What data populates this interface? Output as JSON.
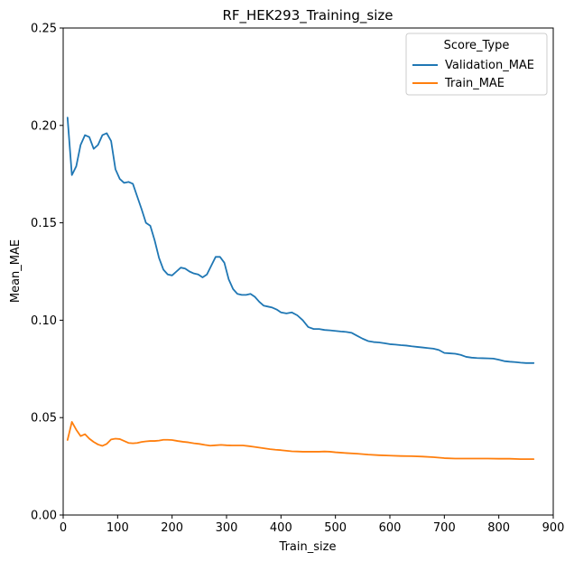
{
  "chart_data": {
    "type": "line",
    "title": "RF_HEK293_Training_size",
    "xlabel": "Train_size",
    "ylabel": "Mean_MAE",
    "xlim": [
      0,
      900
    ],
    "ylim": [
      0,
      0.25
    ],
    "xticks": [
      0,
      100,
      200,
      300,
      400,
      500,
      600,
      700,
      800,
      900
    ],
    "xtick_labels": [
      "0",
      "100",
      "200",
      "300",
      "400",
      "500",
      "600",
      "700",
      "800",
      "900"
    ],
    "yticks": [
      0,
      0.05,
      0.1,
      0.15,
      0.2,
      0.25
    ],
    "ytick_labels": [
      "0.00",
      "0.05",
      "0.10",
      "0.15",
      "0.20",
      "0.25"
    ],
    "grid": false,
    "legend": {
      "title": "Score_Type",
      "position": "top-right"
    },
    "series": [
      {
        "name": "Validation_MAE",
        "color": "#1f77b4",
        "x": [
          8,
          16,
          24,
          32,
          40,
          48,
          56,
          64,
          72,
          80,
          88,
          96,
          104,
          112,
          120,
          128,
          136,
          144,
          152,
          160,
          168,
          176,
          184,
          192,
          200,
          208,
          216,
          224,
          232,
          240,
          248,
          256,
          264,
          272,
          280,
          288,
          296,
          304,
          312,
          320,
          328,
          336,
          344,
          352,
          360,
          368,
          376,
          384,
          392,
          400,
          410,
          420,
          430,
          440,
          450,
          460,
          470,
          480,
          490,
          500,
          510,
          520,
          530,
          540,
          550,
          560,
          570,
          580,
          590,
          600,
          610,
          620,
          630,
          640,
          650,
          660,
          670,
          680,
          690,
          700,
          710,
          720,
          730,
          740,
          750,
          760,
          770,
          780,
          790,
          800,
          810,
          820,
          830,
          840,
          850,
          860,
          864
        ],
        "values": [
          0.204,
          0.1745,
          0.179,
          0.19,
          0.195,
          0.194,
          0.188,
          0.19,
          0.195,
          0.196,
          0.192,
          0.1775,
          0.1725,
          0.1705,
          0.171,
          0.17,
          0.1635,
          0.157,
          0.15,
          0.1485,
          0.141,
          0.132,
          0.126,
          0.1235,
          0.123,
          0.125,
          0.127,
          0.1265,
          0.125,
          0.124,
          0.1235,
          0.122,
          0.1235,
          0.128,
          0.1325,
          0.1325,
          0.1295,
          0.121,
          0.116,
          0.1135,
          0.113,
          0.113,
          0.1135,
          0.112,
          0.1095,
          0.1075,
          0.107,
          0.1065,
          0.1055,
          0.104,
          0.1035,
          0.104,
          0.1025,
          0.1,
          0.0965,
          0.0955,
          0.0955,
          0.095,
          0.0948,
          0.0945,
          0.0942,
          0.094,
          0.0935,
          0.092,
          0.0905,
          0.0893,
          0.0888,
          0.0886,
          0.0882,
          0.0877,
          0.0875,
          0.0872,
          0.087,
          0.0866,
          0.0863,
          0.086,
          0.0857,
          0.0854,
          0.0847,
          0.0832,
          0.083,
          0.0828,
          0.0822,
          0.0812,
          0.0808,
          0.0806,
          0.0805,
          0.0804,
          0.0803,
          0.0797,
          0.079,
          0.0787,
          0.0785,
          0.0782,
          0.078,
          0.078,
          0.078
        ]
      },
      {
        "name": "Train_MAE",
        "color": "#ff7f0e",
        "x": [
          8,
          16,
          24,
          32,
          40,
          48,
          56,
          64,
          72,
          80,
          88,
          96,
          104,
          112,
          120,
          128,
          136,
          144,
          152,
          160,
          168,
          176,
          184,
          192,
          200,
          210,
          220,
          230,
          240,
          250,
          260,
          270,
          280,
          290,
          300,
          310,
          320,
          330,
          340,
          350,
          360,
          370,
          380,
          390,
          400,
          410,
          420,
          430,
          440,
          450,
          460,
          470,
          480,
          490,
          500,
          520,
          540,
          560,
          580,
          600,
          620,
          640,
          660,
          680,
          700,
          720,
          740,
          760,
          780,
          800,
          820,
          840,
          864
        ],
        "values": [
          0.0385,
          0.0478,
          0.0438,
          0.0405,
          0.0415,
          0.0392,
          0.0375,
          0.0362,
          0.0355,
          0.0365,
          0.0388,
          0.0392,
          0.039,
          0.038,
          0.037,
          0.0368,
          0.037,
          0.0375,
          0.0378,
          0.038,
          0.038,
          0.0382,
          0.0386,
          0.0386,
          0.0385,
          0.038,
          0.0376,
          0.0373,
          0.0368,
          0.0365,
          0.036,
          0.0356,
          0.0358,
          0.036,
          0.0358,
          0.0357,
          0.0357,
          0.0357,
          0.0354,
          0.035,
          0.0346,
          0.0342,
          0.0338,
          0.0335,
          0.0333,
          0.033,
          0.0327,
          0.0326,
          0.0325,
          0.0325,
          0.0325,
          0.0325,
          0.0326,
          0.0325,
          0.0322,
          0.0318,
          0.0315,
          0.031,
          0.0307,
          0.0305,
          0.0303,
          0.0302,
          0.03,
          0.0297,
          0.0292,
          0.029,
          0.029,
          0.029,
          0.029,
          0.0289,
          0.0289,
          0.0287,
          0.0287
        ]
      }
    ]
  }
}
